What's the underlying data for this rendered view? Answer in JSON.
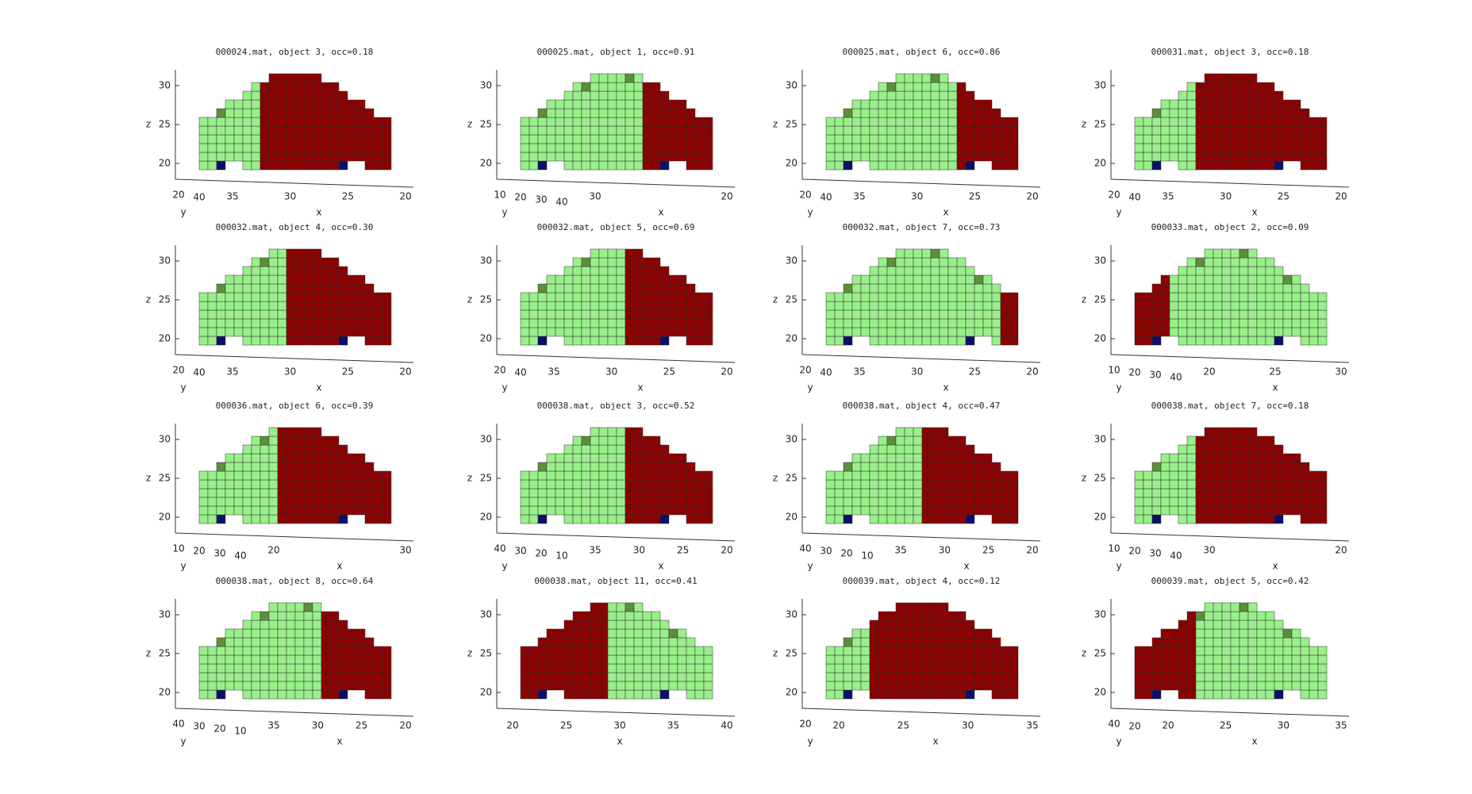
{
  "panels": [
    {
      "title": "000024.mat, object 3, occ=0.18",
      "zticks": [
        20,
        25,
        30
      ],
      "yticks": [
        20,
        40
      ],
      "xticks": [
        35,
        30,
        25,
        20
      ],
      "xlabel": "x",
      "ylabel": "y",
      "zlabel": "z"
    },
    {
      "title": "000025.mat, object 1, occ=0.91",
      "zticks": [
        20,
        25,
        30
      ],
      "yticks": [
        10,
        20,
        30,
        40
      ],
      "xticks": [
        30,
        20
      ],
      "xlabel": "x",
      "ylabel": "y",
      "zlabel": "z"
    },
    {
      "title": "000025.mat, object 6, occ=0.86",
      "zticks": [
        20,
        25,
        30
      ],
      "yticks": [
        20,
        40
      ],
      "xticks": [
        35,
        30,
        25,
        20
      ],
      "xlabel": "x",
      "ylabel": "y",
      "zlabel": "z"
    },
    {
      "title": "000031.mat, object 3, occ=0.18",
      "zticks": [
        20,
        25,
        30
      ],
      "yticks": [
        20,
        40
      ],
      "xticks": [
        35,
        30,
        25,
        20
      ],
      "xlabel": "x",
      "ylabel": "y",
      "zlabel": "z"
    },
    {
      "title": "000032.mat, object 4, occ=0.30",
      "zticks": [
        20,
        25,
        30
      ],
      "yticks": [
        20,
        40
      ],
      "xticks": [
        35,
        30,
        25,
        20
      ],
      "xlabel": "x",
      "ylabel": "y",
      "zlabel": "z"
    },
    {
      "title": "000032.mat, object 5, occ=0.69",
      "zticks": [
        20,
        25,
        30
      ],
      "yticks": [
        20,
        40
      ],
      "xticks": [
        35,
        30,
        25,
        20
      ],
      "xlabel": "x",
      "ylabel": "y",
      "zlabel": "z"
    },
    {
      "title": "000032.mat, object 7, occ=0.73",
      "zticks": [
        20,
        25,
        30
      ],
      "xticks": [
        35,
        30,
        25,
        20
      ],
      "yticks": [
        20,
        40
      ],
      "xlabel": "x",
      "ylabel": "y",
      "zlabel": "z"
    },
    {
      "title": "000033.mat, object 2, occ=0.09",
      "zticks": [
        20,
        25,
        30
      ],
      "xticks": [
        20,
        25,
        30
      ],
      "yticks": [
        10,
        20,
        30,
        40
      ],
      "xlabel": "x",
      "ylabel": "y",
      "zlabel": "z"
    },
    {
      "title": "000036.mat, object 6, occ=0.39",
      "zticks": [
        20,
        25,
        30
      ],
      "xticks": [
        20,
        30
      ],
      "yticks": [
        10,
        20,
        30,
        40
      ],
      "xlabel": "x",
      "ylabel": "y",
      "zlabel": "z"
    },
    {
      "title": "000038.mat, object 3, occ=0.52",
      "zticks": [
        20,
        25,
        30
      ],
      "xticks": [
        35,
        30,
        25,
        20
      ],
      "yticks": [
        40,
        30,
        20,
        10
      ],
      "xlabel": "x",
      "ylabel": "y",
      "zlabel": "z"
    },
    {
      "title": "000038.mat, object 4, occ=0.47",
      "zticks": [
        20,
        25,
        30
      ],
      "xticks": [
        35,
        30,
        25,
        20
      ],
      "yticks": [
        40,
        30,
        20,
        10
      ],
      "xlabel": "x",
      "ylabel": "y",
      "zlabel": "z"
    },
    {
      "title": "000038.mat, object 7, occ=0.18",
      "zticks": [
        20,
        25,
        30
      ],
      "xticks": [
        30,
        20
      ],
      "yticks": [
        10,
        20,
        30,
        40
      ],
      "xlabel": "x",
      "ylabel": "y",
      "zlabel": "z"
    },
    {
      "title": "000038.mat, object 8, occ=0.64",
      "zticks": [
        20,
        25,
        30
      ],
      "xticks": [
        35,
        30,
        25,
        20
      ],
      "yticks": [
        40,
        30,
        20,
        10
      ],
      "xlabel": "x",
      "ylabel": "y",
      "zlabel": "z"
    },
    {
      "title": "000038.mat, object 11, occ=0.41",
      "zticks": [
        20,
        25,
        30
      ],
      "xticks": [
        20,
        25,
        30,
        35,
        40
      ],
      "xlabel": "x",
      "zlabel": "z"
    },
    {
      "title": "000039.mat, object 4, occ=0.12",
      "zticks": [
        20,
        25,
        30
      ],
      "yticks": [
        20
      ],
      "xticks": [
        20,
        25,
        30,
        35
      ],
      "xlabel": "x",
      "ylabel": "y",
      "zlabel": "z"
    },
    {
      "title": "000039.mat, object 5, occ=0.42",
      "zticks": [
        20,
        25,
        30
      ],
      "xticks": [
        20,
        25,
        30,
        35
      ],
      "yticks": [
        40,
        20
      ],
      "xlabel": "x",
      "ylabel": "y",
      "zlabel": "z"
    }
  ]
}
